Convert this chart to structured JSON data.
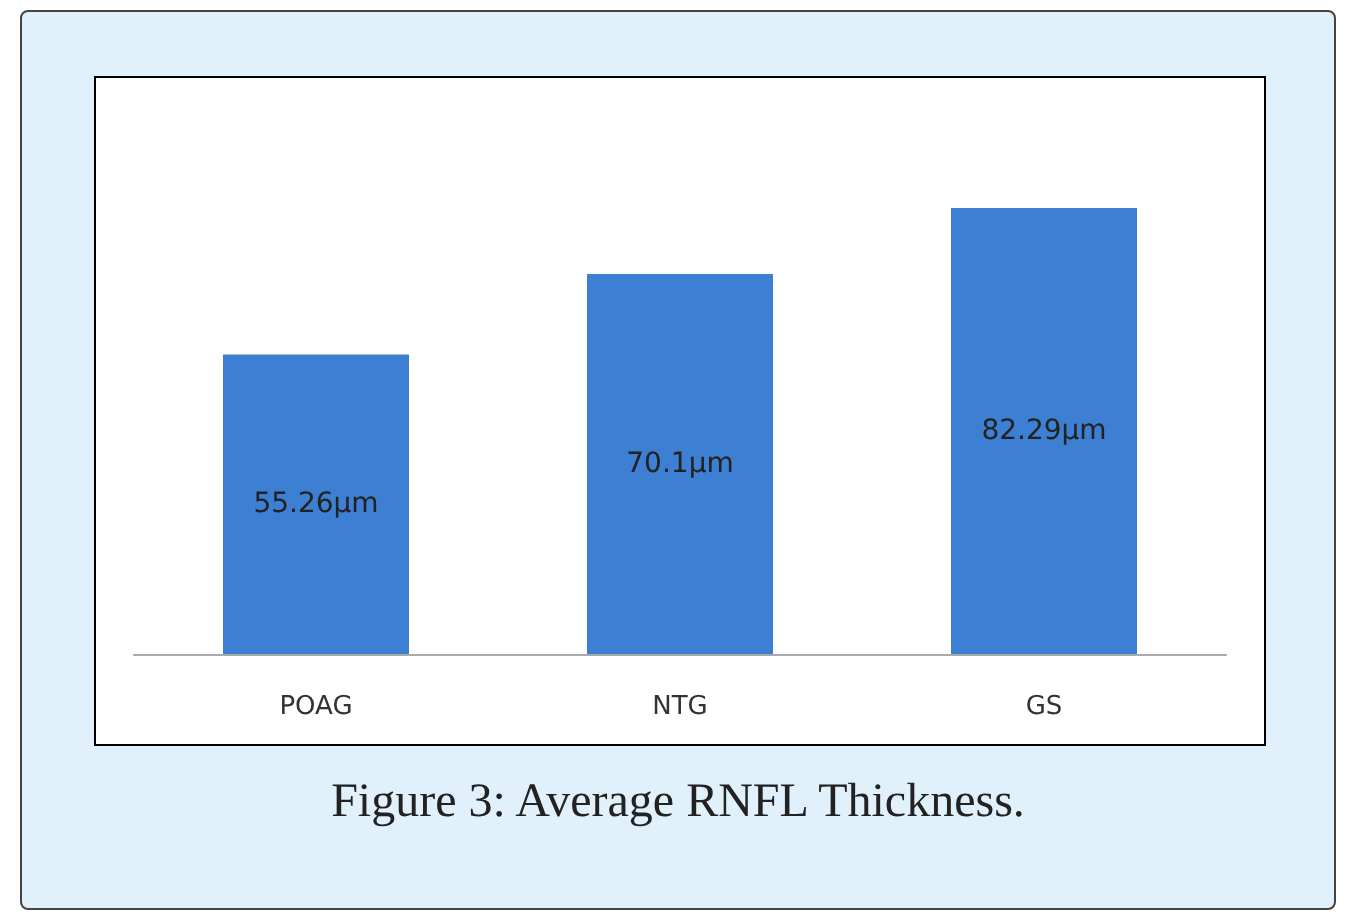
{
  "chart_data": {
    "type": "bar",
    "categories": [
      "POAG",
      "NTG",
      "GS"
    ],
    "values": [
      55.26,
      70.1,
      82.29
    ],
    "value_labels": [
      "55.26µm",
      "70.1µm",
      "82.29µm"
    ],
    "color": "#3d7fd3",
    "tick_labels": "x",
    "annotations": [
      "Figure 3: Average RNFL Thickness."
    ]
  }
}
